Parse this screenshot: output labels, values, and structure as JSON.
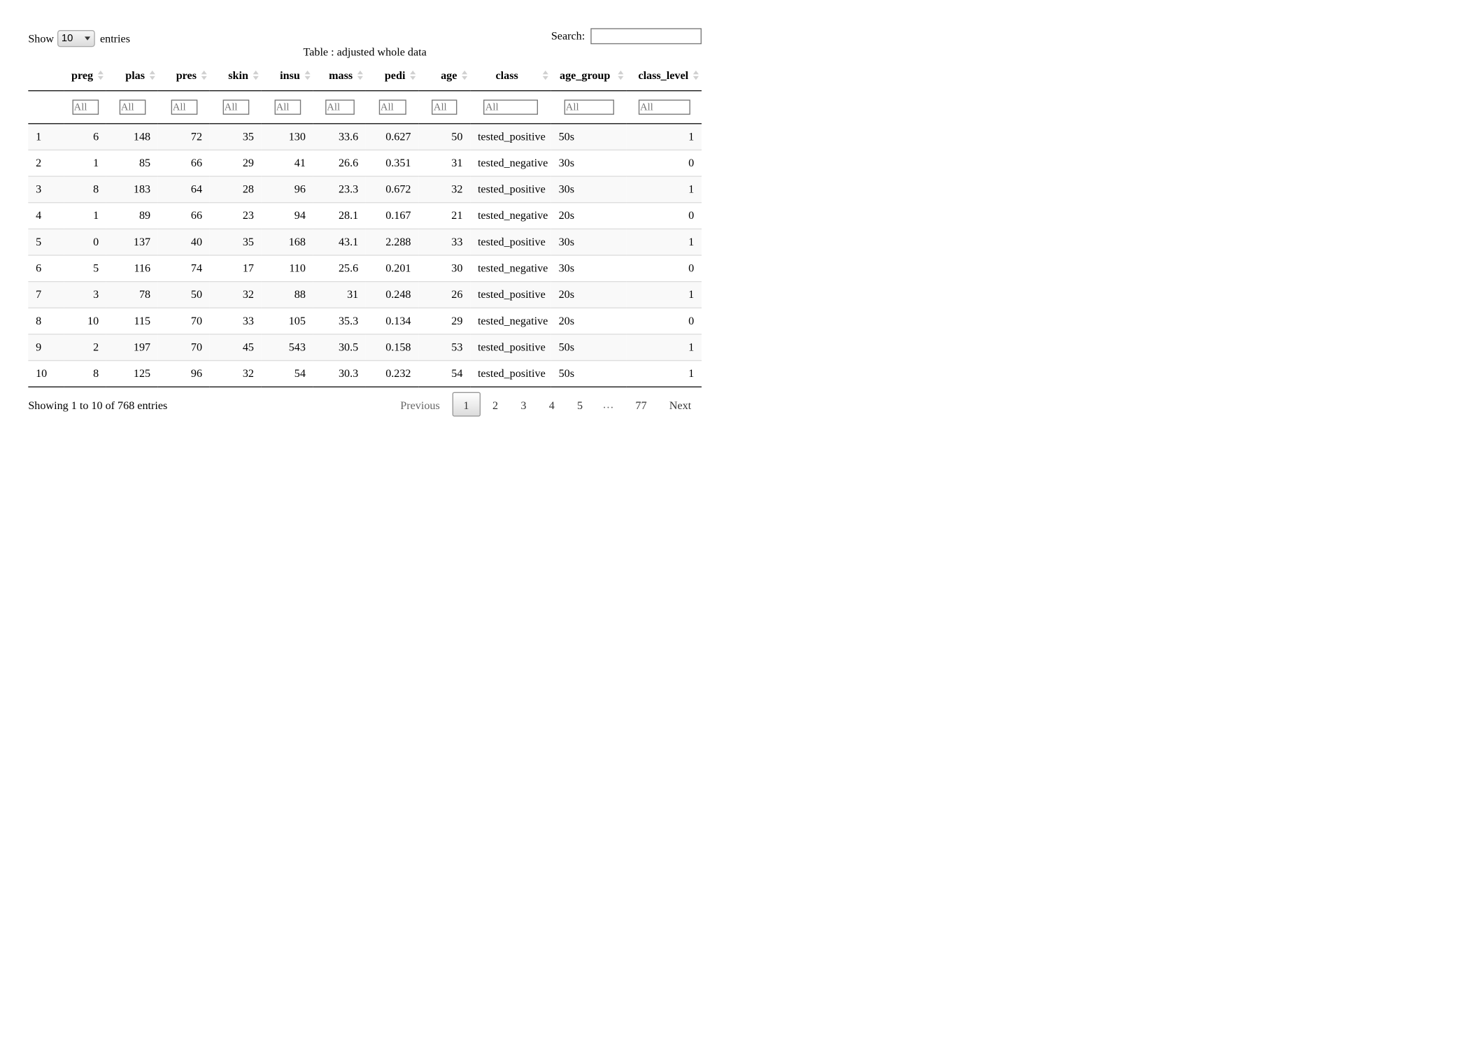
{
  "length_menu": {
    "show_label": "Show",
    "selected": "10",
    "entries_label": "entries"
  },
  "search": {
    "label": "Search:",
    "value": ""
  },
  "caption": "Table : adjusted whole data",
  "columns": [
    {
      "label": "",
      "align": "left",
      "sortable": false
    },
    {
      "label": "preg",
      "align": "right",
      "sortable": true
    },
    {
      "label": "plas",
      "align": "right",
      "sortable": true
    },
    {
      "label": "pres",
      "align": "right",
      "sortable": true
    },
    {
      "label": "skin",
      "align": "right",
      "sortable": true
    },
    {
      "label": "insu",
      "align": "right",
      "sortable": true
    },
    {
      "label": "mass",
      "align": "right",
      "sortable": true
    },
    {
      "label": "pedi",
      "align": "right",
      "sortable": true
    },
    {
      "label": "age",
      "align": "right",
      "sortable": true
    },
    {
      "label": "class",
      "align": "center",
      "sortable": true
    },
    {
      "label": "age_group",
      "align": "center",
      "sortable": true
    },
    {
      "label": "class_level",
      "align": "right",
      "sortable": true
    }
  ],
  "column_filter_placeholder": "All",
  "rows": [
    [
      "1",
      "6",
      "148",
      "72",
      "35",
      "130",
      "33.6",
      "0.627",
      "50",
      "tested_positive",
      "50s",
      "1"
    ],
    [
      "2",
      "1",
      "85",
      "66",
      "29",
      "41",
      "26.6",
      "0.351",
      "31",
      "tested_negative",
      "30s",
      "0"
    ],
    [
      "3",
      "8",
      "183",
      "64",
      "28",
      "96",
      "23.3",
      "0.672",
      "32",
      "tested_positive",
      "30s",
      "1"
    ],
    [
      "4",
      "1",
      "89",
      "66",
      "23",
      "94",
      "28.1",
      "0.167",
      "21",
      "tested_negative",
      "20s",
      "0"
    ],
    [
      "5",
      "0",
      "137",
      "40",
      "35",
      "168",
      "43.1",
      "2.288",
      "33",
      "tested_positive",
      "30s",
      "1"
    ],
    [
      "6",
      "5",
      "116",
      "74",
      "17",
      "110",
      "25.6",
      "0.201",
      "30",
      "tested_negative",
      "30s",
      "0"
    ],
    [
      "7",
      "3",
      "78",
      "50",
      "32",
      "88",
      "31",
      "0.248",
      "26",
      "tested_positive",
      "20s",
      "1"
    ],
    [
      "8",
      "10",
      "115",
      "70",
      "33",
      "105",
      "35.3",
      "0.134",
      "29",
      "tested_negative",
      "20s",
      "0"
    ],
    [
      "9",
      "2",
      "197",
      "70",
      "45",
      "543",
      "30.5",
      "0.158",
      "53",
      "tested_positive",
      "50s",
      "1"
    ],
    [
      "10",
      "8",
      "125",
      "96",
      "32",
      "54",
      "30.3",
      "0.232",
      "54",
      "tested_positive",
      "50s",
      "1"
    ]
  ],
  "info": "Showing 1 to 10 of 768 entries",
  "pagination": {
    "previous": "Previous",
    "pages": [
      "1",
      "2",
      "3",
      "4",
      "5"
    ],
    "current": "1",
    "ellipsis": "…",
    "last": "77",
    "next": "Next"
  }
}
